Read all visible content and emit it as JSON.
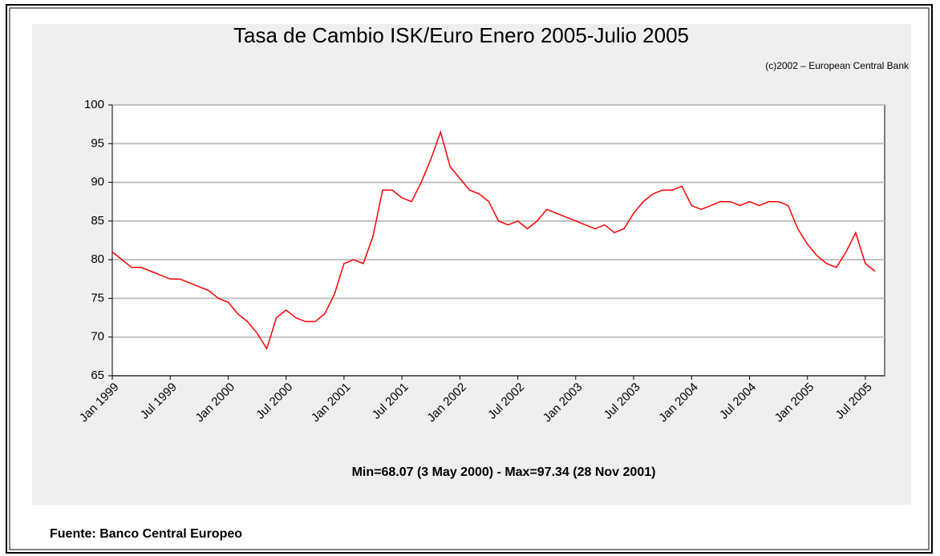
{
  "chart_data": {
    "type": "line",
    "title": "Tasa de Cambio ISK/Euro Enero 2005-Julio 2005",
    "copyright": "(c)2002 – European Central Bank",
    "caption": "Min=68.07 (3 May 2000) - Max=97.34 (28 Nov 2001)",
    "source": "Fuente: Banco Central Europeo",
    "x": [
      "1999-01",
      "1999-02",
      "1999-03",
      "1999-04",
      "1999-05",
      "1999-06",
      "1999-07",
      "1999-08",
      "1999-09",
      "1999-10",
      "1999-11",
      "1999-12",
      "2000-01",
      "2000-02",
      "2000-03",
      "2000-04",
      "2000-05",
      "2000-06",
      "2000-07",
      "2000-08",
      "2000-09",
      "2000-10",
      "2000-11",
      "2000-12",
      "2001-01",
      "2001-02",
      "2001-03",
      "2001-04",
      "2001-05",
      "2001-06",
      "2001-07",
      "2001-08",
      "2001-09",
      "2001-10",
      "2001-11",
      "2001-12",
      "2002-01",
      "2002-02",
      "2002-03",
      "2002-04",
      "2002-05",
      "2002-06",
      "2002-07",
      "2002-08",
      "2002-09",
      "2002-10",
      "2002-11",
      "2002-12",
      "2003-01",
      "2003-02",
      "2003-03",
      "2003-04",
      "2003-05",
      "2003-06",
      "2003-07",
      "2003-08",
      "2003-09",
      "2003-10",
      "2003-11",
      "2003-12",
      "2004-01",
      "2004-02",
      "2004-03",
      "2004-04",
      "2004-05",
      "2004-06",
      "2004-07",
      "2004-08",
      "2004-09",
      "2004-10",
      "2004-11",
      "2004-12",
      "2005-01",
      "2005-02",
      "2005-03",
      "2005-04",
      "2005-05",
      "2005-06",
      "2005-07",
      "2005-08"
    ],
    "series": [
      {
        "name": "ISK/EUR",
        "color": "#ff0000",
        "values": [
          81,
          80,
          79,
          79,
          78.5,
          78,
          77.5,
          77.5,
          77,
          76.5,
          76,
          75,
          74.5,
          73,
          72,
          70.5,
          68.5,
          72.5,
          73.5,
          72.5,
          72,
          72,
          73,
          75.5,
          79.5,
          80,
          79.5,
          83,
          89,
          89,
          88,
          87.5,
          90,
          93,
          96.5,
          92,
          90.5,
          89,
          88.5,
          87.5,
          85,
          84.5,
          85,
          84,
          85,
          86.5,
          86,
          85.5,
          85,
          84.5,
          84,
          84.5,
          83.5,
          84,
          86,
          87.5,
          88.5,
          89,
          89,
          89.5,
          87,
          86.5,
          87,
          87.5,
          87.5,
          87,
          87.5,
          87,
          87.5,
          87.5,
          87,
          84,
          82,
          80.5,
          79.5,
          79,
          81,
          83.5,
          79.5,
          78.5
        ]
      }
    ],
    "xlim": [
      "1999-01",
      "2005-09"
    ],
    "xticks": [
      {
        "value": "1999-01",
        "label": "Jan 1999"
      },
      {
        "value": "1999-07",
        "label": "Jul 1999"
      },
      {
        "value": "2000-01",
        "label": "Jan 2000"
      },
      {
        "value": "2000-07",
        "label": "Jul 2000"
      },
      {
        "value": "2001-01",
        "label": "Jan 2001"
      },
      {
        "value": "2001-07",
        "label": "Jul 2001"
      },
      {
        "value": "2002-01",
        "label": "Jan 2002"
      },
      {
        "value": "2002-07",
        "label": "Jul 2002"
      },
      {
        "value": "2003-01",
        "label": "Jan 2003"
      },
      {
        "value": "2003-07",
        "label": "Jul 2003"
      },
      {
        "value": "2004-01",
        "label": "Jan 2004"
      },
      {
        "value": "2004-07",
        "label": "Jul 2004"
      },
      {
        "value": "2005-01",
        "label": "Jan 2005"
      },
      {
        "value": "2005-07",
        "label": "Jul 2005"
      }
    ],
    "ylim": [
      65,
      100
    ],
    "yticks": [
      65,
      70,
      75,
      80,
      85,
      90,
      95,
      100
    ],
    "grid": true
  }
}
